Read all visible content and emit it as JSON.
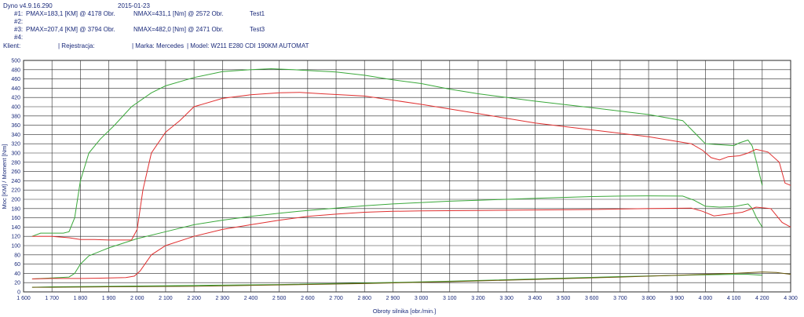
{
  "header": {
    "version": "Dyno v4.9.16.290",
    "date": "2015-01-23",
    "runs": [
      {
        "id": "#1:",
        "pmax": "PMAX=183,1 [KM] @ 4178 Obr.",
        "nmax": "NMAX=431,1 [Nm] @ 2572 Obr.",
        "label": "Test1"
      },
      {
        "id": "#2:",
        "pmax": "",
        "nmax": "",
        "label": ""
      },
      {
        "id": "#3:",
        "pmax": "PMAX=207,4 [KM] @ 3794 Obr.",
        "nmax": "NMAX=482,0 [Nm] @ 2471 Obr.",
        "label": "Test3"
      },
      {
        "id": "#4:",
        "pmax": "",
        "nmax": "",
        "label": ""
      }
    ],
    "client_label": "Klient:",
    "registration": "| Rejestracja:",
    "make": "| Marka: Mercedes",
    "model": "| Model: W211 E280 CDI 190KM AUTOMAT"
  },
  "chart_data": {
    "type": "line",
    "xlabel": "Obroty silnika [obr./min.]",
    "ylabel": "Moc [KM] / Moment [Nm]",
    "xlim": [
      1600,
      4300
    ],
    "ylim": [
      0,
      500
    ],
    "xticks": [
      1600,
      1700,
      1800,
      1900,
      2000,
      2100,
      2200,
      2300,
      2400,
      2500,
      2600,
      2700,
      2800,
      2900,
      3000,
      3100,
      3200,
      3300,
      3400,
      3500,
      3600,
      3700,
      3800,
      3900,
      4000,
      4100,
      4200,
      4300
    ],
    "xtick_labels": [
      "1 600",
      "1 700",
      "1 800",
      "1 900",
      "2 000",
      "2 100",
      "2 200",
      "2 300",
      "2 400",
      "2 500",
      "2 600",
      "2 700",
      "2 800",
      "2 900",
      "3 000",
      "3 100",
      "3 200",
      "3 300",
      "3 400",
      "3 500",
      "3 600",
      "3 700",
      "3 800",
      "3 900",
      "4 000",
      "4 100",
      "4 200",
      "4 300"
    ],
    "yticks": [
      0,
      20,
      40,
      60,
      80,
      100,
      120,
      140,
      160,
      180,
      200,
      220,
      240,
      260,
      280,
      300,
      320,
      340,
      360,
      380,
      400,
      420,
      440,
      460,
      480,
      500
    ],
    "grid": true,
    "series": [
      {
        "name": "Test3",
        "color": "#3aa83a",
        "torque": [
          [
            1630,
            120
          ],
          [
            1660,
            127
          ],
          [
            1700,
            127
          ],
          [
            1740,
            127
          ],
          [
            1760,
            130
          ],
          [
            1780,
            160
          ],
          [
            1800,
            240
          ],
          [
            1830,
            300
          ],
          [
            1870,
            330
          ],
          [
            1920,
            360
          ],
          [
            1980,
            400
          ],
          [
            2050,
            430
          ],
          [
            2100,
            445
          ],
          [
            2200,
            463
          ],
          [
            2300,
            476
          ],
          [
            2400,
            480
          ],
          [
            2471,
            482
          ],
          [
            2550,
            480
          ],
          [
            2700,
            475
          ],
          [
            2800,
            468
          ],
          [
            2900,
            458
          ],
          [
            3000,
            450
          ],
          [
            3100,
            438
          ],
          [
            3200,
            428
          ],
          [
            3400,
            412
          ],
          [
            3600,
            398
          ],
          [
            3800,
            383
          ],
          [
            3920,
            370
          ],
          [
            3960,
            345
          ],
          [
            4000,
            320
          ],
          [
            4050,
            318
          ],
          [
            4100,
            316
          ],
          [
            4120,
            322
          ],
          [
            4150,
            328
          ],
          [
            4165,
            315
          ],
          [
            4180,
            280
          ],
          [
            4200,
            230
          ]
        ],
        "power": [
          [
            1630,
            28
          ],
          [
            1700,
            30
          ],
          [
            1760,
            32
          ],
          [
            1780,
            40
          ],
          [
            1800,
            60
          ],
          [
            1830,
            78
          ],
          [
            1900,
            95
          ],
          [
            2000,
            115
          ],
          [
            2100,
            130
          ],
          [
            2200,
            145
          ],
          [
            2300,
            155
          ],
          [
            2400,
            163
          ],
          [
            2500,
            170
          ],
          [
            2600,
            176
          ],
          [
            2700,
            181
          ],
          [
            2800,
            186
          ],
          [
            2900,
            190
          ],
          [
            3000,
            193
          ],
          [
            3100,
            196
          ],
          [
            3200,
            198
          ],
          [
            3300,
            200
          ],
          [
            3400,
            202
          ],
          [
            3500,
            204
          ],
          [
            3600,
            206
          ],
          [
            3700,
            207
          ],
          [
            3794,
            207.4
          ],
          [
            3920,
            207
          ],
          [
            3960,
            198
          ],
          [
            4000,
            185
          ],
          [
            4050,
            183
          ],
          [
            4100,
            184
          ],
          [
            4150,
            190
          ],
          [
            4165,
            180
          ],
          [
            4180,
            160
          ],
          [
            4200,
            140
          ]
        ],
        "loss": [
          [
            1630,
            10
          ],
          [
            1700,
            11
          ],
          [
            1900,
            12
          ],
          [
            2200,
            14
          ],
          [
            2500,
            16
          ],
          [
            2800,
            19
          ],
          [
            3100,
            23
          ],
          [
            3400,
            28
          ],
          [
            3700,
            33
          ],
          [
            4000,
            37
          ],
          [
            4100,
            38
          ],
          [
            4150,
            38
          ],
          [
            4200,
            36
          ]
        ]
      },
      {
        "name": "Test1",
        "color": "#e03030",
        "torque": [
          [
            1630,
            120
          ],
          [
            1700,
            120
          ],
          [
            1760,
            117
          ],
          [
            1800,
            113
          ],
          [
            1850,
            113
          ],
          [
            1900,
            112
          ],
          [
            1950,
            112
          ],
          [
            1980,
            112
          ],
          [
            2000,
            135
          ],
          [
            2020,
            220
          ],
          [
            2050,
            300
          ],
          [
            2100,
            345
          ],
          [
            2150,
            370
          ],
          [
            2200,
            400
          ],
          [
            2300,
            418
          ],
          [
            2400,
            426
          ],
          [
            2500,
            430
          ],
          [
            2572,
            431.1
          ],
          [
            2650,
            428
          ],
          [
            2800,
            423
          ],
          [
            2900,
            414
          ],
          [
            3000,
            405
          ],
          [
            3100,
            395
          ],
          [
            3200,
            385
          ],
          [
            3300,
            375
          ],
          [
            3400,
            365
          ],
          [
            3600,
            350
          ],
          [
            3800,
            335
          ],
          [
            3900,
            325
          ],
          [
            3950,
            320
          ],
          [
            3990,
            306
          ],
          [
            4020,
            290
          ],
          [
            4050,
            285
          ],
          [
            4080,
            292
          ],
          [
            4120,
            294
          ],
          [
            4150,
            300
          ],
          [
            4178,
            308
          ],
          [
            4220,
            302
          ],
          [
            4260,
            280
          ],
          [
            4280,
            235
          ],
          [
            4300,
            230
          ]
        ],
        "power": [
          [
            1630,
            28
          ],
          [
            1700,
            29
          ],
          [
            1800,
            29
          ],
          [
            1900,
            30
          ],
          [
            1960,
            31
          ],
          [
            1990,
            34
          ],
          [
            2010,
            45
          ],
          [
            2050,
            80
          ],
          [
            2100,
            100
          ],
          [
            2200,
            120
          ],
          [
            2300,
            135
          ],
          [
            2400,
            145
          ],
          [
            2500,
            155
          ],
          [
            2600,
            163
          ],
          [
            2700,
            168
          ],
          [
            2800,
            172
          ],
          [
            2900,
            174
          ],
          [
            3000,
            175
          ],
          [
            3200,
            176
          ],
          [
            3400,
            177
          ],
          [
            3600,
            178
          ],
          [
            3800,
            180
          ],
          [
            3950,
            181
          ],
          [
            3990,
            174
          ],
          [
            4030,
            164
          ],
          [
            4080,
            168
          ],
          [
            4130,
            172
          ],
          [
            4178,
            183.1
          ],
          [
            4230,
            180
          ],
          [
            4270,
            150
          ],
          [
            4300,
            140
          ]
        ],
        "loss": [
          [
            1630,
            10
          ],
          [
            1700,
            10
          ],
          [
            1900,
            11
          ],
          [
            2200,
            12
          ],
          [
            2500,
            15
          ],
          [
            2800,
            18
          ],
          [
            3100,
            22
          ],
          [
            3400,
            27
          ],
          [
            3700,
            32
          ],
          [
            4000,
            38
          ],
          [
            4100,
            40
          ],
          [
            4200,
            43
          ],
          [
            4250,
            42
          ],
          [
            4300,
            38
          ]
        ]
      }
    ]
  }
}
